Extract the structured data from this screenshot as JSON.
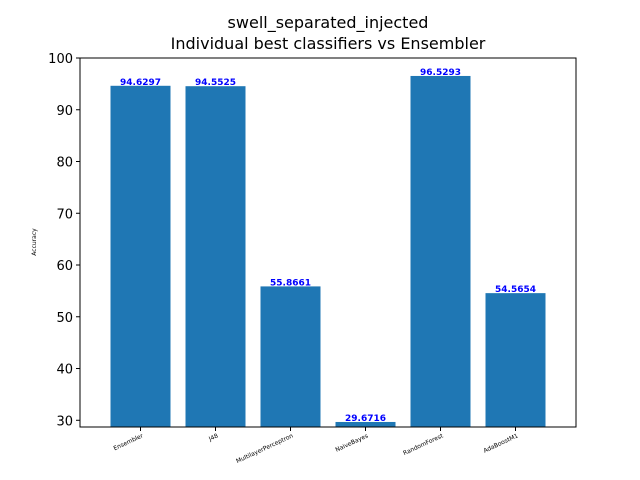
{
  "chart_data": {
    "type": "bar",
    "title": "swell_separated_injected",
    "subtitle": "Individual best classifiers vs Ensembler",
    "xlabel": "",
    "ylabel": "Accuracy",
    "categories": [
      "Ensembler",
      "J48",
      "MultilayerPerceptron",
      "NaiveBayes",
      "RandomForest",
      "AdaBoostM1"
    ],
    "values": [
      94.6297,
      94.5525,
      55.8661,
      29.6716,
      96.5293,
      54.5654
    ],
    "data_labels": [
      "94.6297",
      "94.5525",
      "55.8661",
      "29.6716",
      "96.5293",
      "54.5654"
    ],
    "ylim": [
      28.7,
      100
    ],
    "yticks": [
      30,
      40,
      50,
      60,
      70,
      80,
      90,
      100
    ],
    "bar_color": "#1f77b4",
    "label_color": "#0000ff",
    "grid": false,
    "legend": "none"
  }
}
